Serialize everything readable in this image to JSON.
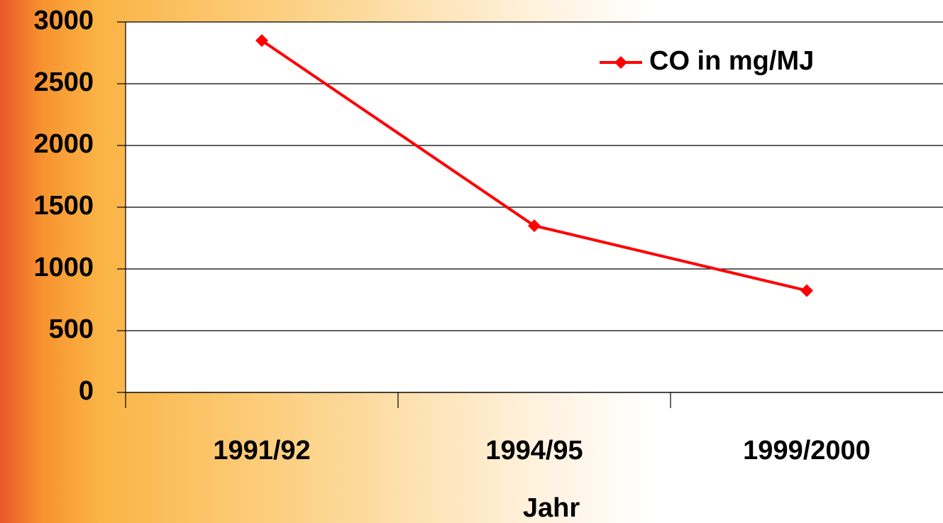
{
  "chart_data": {
    "type": "line",
    "categories": [
      "1991/92",
      "1994/95",
      "1999/2000"
    ],
    "series": [
      {
        "name": "CO in mg/MJ",
        "color": "#ff0000",
        "values": [
          2850,
          1350,
          825
        ]
      }
    ],
    "x_label": "Jahr",
    "ylim": [
      0,
      3000
    ],
    "yticks": [
      0,
      500,
      1000,
      1500,
      2000,
      2500,
      3000
    ],
    "grid": true,
    "legend": "top-right"
  }
}
